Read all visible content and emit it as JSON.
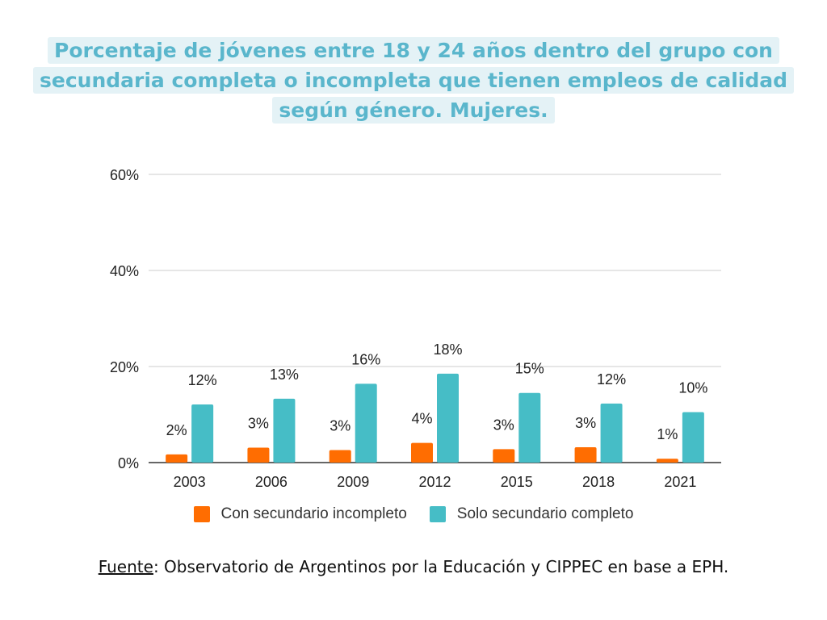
{
  "title": {
    "lines": [
      "Porcentaje de jóvenes entre 18 y 24 años dentro del grupo con",
      "secundaria completa o incompleta que tienen  empleos de calidad",
      "según género. Mujeres."
    ]
  },
  "colors": {
    "title": "#5ab6cc",
    "series1": "#ff6d01",
    "series2": "#46bdc6",
    "grid": "#cccccc",
    "axis": "#333333"
  },
  "chart_data": {
    "type": "bar",
    "title": "Porcentaje de jóvenes entre 18 y 24 años dentro del grupo con secundaria completa o incompleta que tienen  empleos de calidad según género. Mujeres.",
    "categories": [
      "2003",
      "2006",
      "2009",
      "2012",
      "2015",
      "2018",
      "2021"
    ],
    "series": [
      {
        "name": "Con secundario incompleto",
        "values": [
          1.7,
          3.1,
          2.6,
          4.1,
          2.8,
          3.2,
          0.8
        ],
        "labels": [
          "2%",
          "3%",
          "3%",
          "4%",
          "3%",
          "3%",
          "1%"
        ]
      },
      {
        "name": "Solo secundario completo",
        "values": [
          12.1,
          13.3,
          16.4,
          18.5,
          14.5,
          12.3,
          10.5
        ],
        "labels": [
          "12%",
          "13%",
          "16%",
          "18%",
          "15%",
          "12%",
          "10%"
        ]
      }
    ],
    "ylim": [
      0,
      60
    ],
    "yticks": [
      0,
      20,
      40,
      60
    ],
    "ytick_labels": [
      "0%",
      "20%",
      "40%",
      "60%"
    ],
    "xlabel": "",
    "ylabel": "",
    "grid": true,
    "legend": "bottom"
  },
  "legend": {
    "items": [
      "Con secundario incompleto",
      "Solo secundario completo"
    ]
  },
  "source": {
    "label": "Fuente",
    "text": ": Observatorio de Argentinos por la Educación y CIPPEC en base a EPH."
  }
}
